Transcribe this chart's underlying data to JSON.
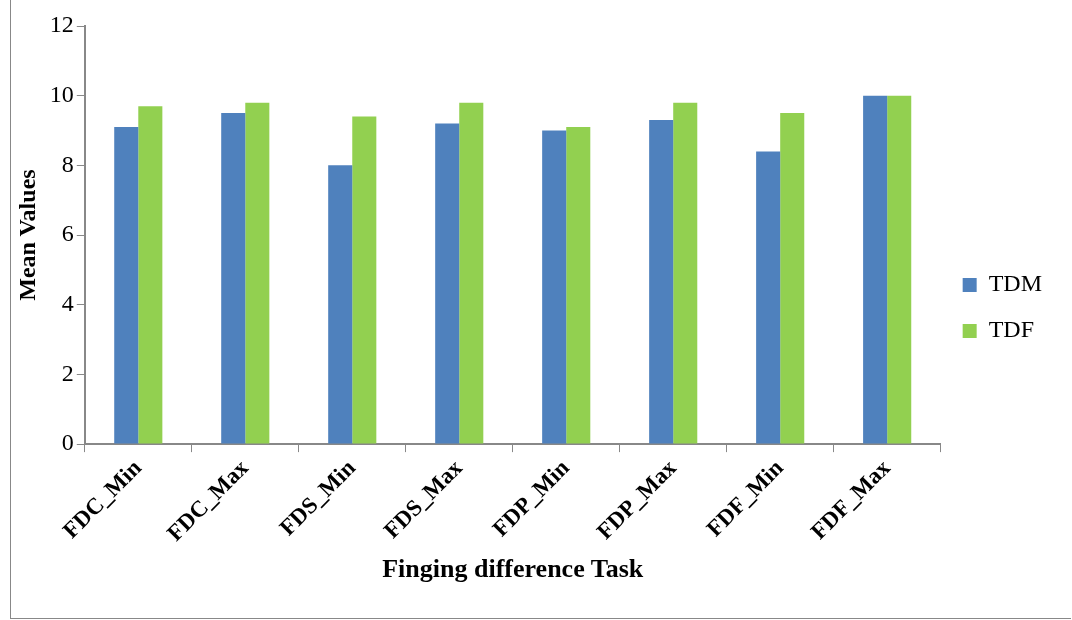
{
  "chart_data": {
    "type": "bar",
    "xlabel": "Finging difference Task",
    "ylabel": "Mean Values",
    "categories": [
      "FDC_Min",
      "FDC_Max",
      "FDS_Min",
      "FDS_Max",
      "FDP_Min",
      "FDP_Max",
      "FDF_Min",
      "FDF_Max"
    ],
    "series": [
      {
        "name": "TDM",
        "color": "#4f81bd",
        "values": [
          9.1,
          9.5,
          8.0,
          9.2,
          9.0,
          9.3,
          8.4,
          10
        ]
      },
      {
        "name": "TDF",
        "color": "#92d050",
        "values": [
          9.7,
          9.8,
          9.4,
          9.8,
          9.1,
          9.8,
          9.5,
          10
        ]
      }
    ],
    "ylim": [
      0,
      12
    ],
    "yticks": [
      0,
      2,
      4,
      6,
      8,
      10,
      12
    ],
    "grid": false,
    "legend": "right"
  }
}
